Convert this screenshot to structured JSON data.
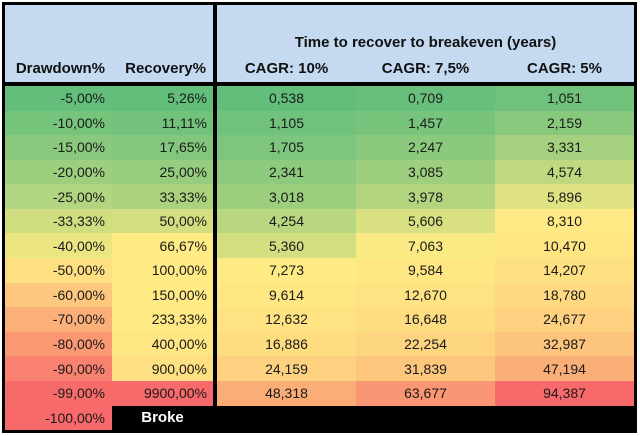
{
  "title": "Time to recover to breakeven (years)",
  "headers": {
    "drawdown": "Drawdown%",
    "recovery": "Recovery%",
    "cagr_cols": [
      "CAGR: 10%",
      "CAGR: 7,5%",
      "CAGR: 5%"
    ]
  },
  "rows": [
    {
      "cells": [
        "-5,00%",
        "5,26%",
        "0,538",
        "0,709",
        "1,051"
      ],
      "bg": [
        "#63BE7B",
        "#63BE7B",
        "#63BE7B",
        "#67BF7B",
        "#6FC17C"
      ]
    },
    {
      "cells": [
        "-10,00%",
        "11,11%",
        "1,105",
        "1,457",
        "2,159"
      ],
      "bg": [
        "#76C47C",
        "#72C27C",
        "#70C27C",
        "#78C47C",
        "#88C97D"
      ]
    },
    {
      "cells": [
        "-15,00%",
        "17,65%",
        "1,705",
        "2,247",
        "3,331"
      ],
      "bg": [
        "#8AC97D",
        "#82C77D",
        "#7EC67D",
        "#8BC97D",
        "#A4D07F"
      ]
    },
    {
      "cells": [
        "-20,00%",
        "25,00%",
        "2,341",
        "3,085",
        "4,574"
      ],
      "bg": [
        "#9DCF7E",
        "#95CC7E",
        "#8DCA7D",
        "#9ECF7E",
        "#C0D980"
      ]
    },
    {
      "cells": [
        "-25,00%",
        "33,33%",
        "3,018",
        "3,978",
        "5,896"
      ],
      "bg": [
        "#B1D580",
        "#AAD27F",
        "#9CCE7E",
        "#B3D580",
        "#DFE282"
      ]
    },
    {
      "cells": [
        "-33,33%",
        "50,00%",
        "4,254",
        "5,606",
        "8,310"
      ],
      "bg": [
        "#D1DD81",
        "#D4DE81",
        "#B9D780",
        "#D8E082",
        "#FFE984"
      ]
    },
    {
      "cells": [
        "-40,00%",
        "66,67%",
        "5,360",
        "7,063",
        "10,470"
      ],
      "bg": [
        "#EBE582",
        "#FFEB84",
        "#D3DE81",
        "#FAEA84",
        "#FFE683"
      ]
    },
    {
      "cells": [
        "-50,00%",
        "100,00%",
        "7,273",
        "9,584",
        "14,207"
      ],
      "bg": [
        "#FEDF81",
        "#FFEB84",
        "#FFEB84",
        "#FFE883",
        "#FEE082"
      ]
    },
    {
      "cells": [
        "-60,00%",
        "150,00%",
        "9,614",
        "12,670",
        "18,780"
      ],
      "bg": [
        "#FDC77D",
        "#FFEA84",
        "#FFE883",
        "#FFE383",
        "#FED981"
      ]
    },
    {
      "cells": [
        "-70,00%",
        "233,33%",
        "12,632",
        "16,648",
        "24,677"
      ],
      "bg": [
        "#FCB079",
        "#FFE984",
        "#FFE383",
        "#FEDD81",
        "#FDD17F"
      ]
    },
    {
      "cells": [
        "-80,00%",
        "400,00%",
        "16,886",
        "22,254",
        "32,987"
      ],
      "bg": [
        "#FA9874",
        "#FEE683",
        "#FEDD81",
        "#FDD480",
        "#FCC47C"
      ]
    },
    {
      "cells": [
        "-90,00%",
        "900,00%",
        "24,159",
        "31,839",
        "47,194"
      ],
      "bg": [
        "#F9816F",
        "#FEE082",
        "#FDD17F",
        "#FDC67D",
        "#FBAF78"
      ]
    },
    {
      "cells": [
        "-99,00%",
        "9900,00%",
        "48,318",
        "63,677",
        "94,387"
      ],
      "bg": [
        "#F86B6B",
        "#F8696B",
        "#FBAD78",
        "#FA9673",
        "#F8696B"
      ]
    }
  ],
  "broke_row": {
    "drawdown": "-100,00%",
    "label": "Broke",
    "drawdown_bg": "#F8696B",
    "bar_bg": "#000000",
    "text_color": "#FFFFFF"
  },
  "colors": {
    "header_bg": "#C5D9F1",
    "border": "#000000",
    "text": "#1A1A1A",
    "scale_min_green": "#63BE7B",
    "scale_mid_yellow": "#FFEB84",
    "scale_max_red": "#F8696B"
  },
  "chart_data": {
    "type": "table",
    "title": "Time to recover to breakeven (years)",
    "columns": [
      "Drawdown%",
      "Recovery%",
      "CAGR: 10%",
      "CAGR: 7,5%",
      "CAGR: 5%"
    ],
    "rows": [
      [
        -5.0,
        5.26,
        0.538,
        0.709,
        1.051
      ],
      [
        -10.0,
        11.11,
        1.105,
        1.457,
        2.159
      ],
      [
        -15.0,
        17.65,
        1.705,
        2.247,
        3.331
      ],
      [
        -20.0,
        25.0,
        2.341,
        3.085,
        4.574
      ],
      [
        -25.0,
        33.33,
        3.018,
        3.978,
        5.896
      ],
      [
        -33.33,
        50.0,
        4.254,
        5.606,
        8.31
      ],
      [
        -40.0,
        66.67,
        5.36,
        7.063,
        10.47
      ],
      [
        -50.0,
        100.0,
        7.273,
        9.584,
        14.207
      ],
      [
        -60.0,
        150.0,
        9.614,
        12.67,
        18.78
      ],
      [
        -70.0,
        233.33,
        12.632,
        16.648,
        24.677
      ],
      [
        -80.0,
        400.0,
        16.886,
        22.254,
        32.987
      ],
      [
        -90.0,
        900.0,
        24.159,
        31.839,
        47.194
      ],
      [
        -99.0,
        9900.0,
        48.318,
        63.677,
        94.387
      ],
      [
        -100.0,
        null,
        null,
        null,
        null
      ]
    ],
    "annotations": [
      "Row at -100,00% drawdown is labeled 'Broke' on a black bar"
    ],
    "layout_hints": {
      "heatmap": "red-yellow-green 3-color scale per column group (green=low/good, red=high/bad)",
      "decimal_separator": ",",
      "grid": "off",
      "legend": "none"
    }
  }
}
